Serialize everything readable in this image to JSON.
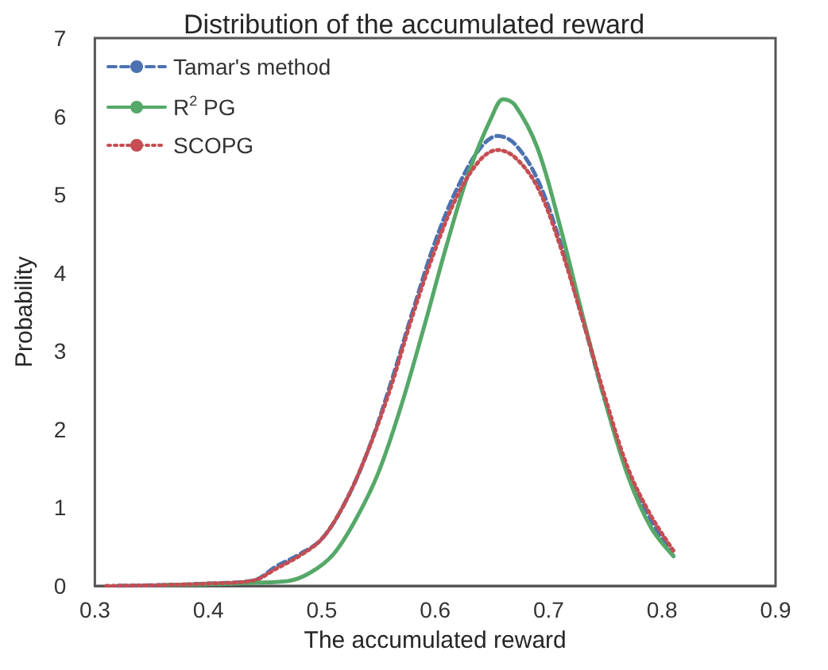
{
  "chart_data": {
    "type": "line",
    "title": "Distribution of the accumulated reward",
    "xlabel": "The accumulated reward",
    "ylabel": "Probability",
    "xlim": [
      0.3,
      0.9
    ],
    "xticks": [
      0.3,
      0.4,
      0.5,
      0.6,
      0.7,
      0.8,
      0.9
    ],
    "ylim": [
      0,
      7
    ],
    "yticks": [
      0,
      1,
      2,
      3,
      4,
      5,
      6,
      7
    ],
    "grid": false,
    "legend": "top left",
    "marker": "none",
    "series": [
      {
        "name": "Tamar's method",
        "color": "#4c72b0",
        "line_style": "dashed",
        "x": [
          0.32,
          0.36,
          0.4,
          0.44,
          0.46,
          0.48,
          0.5,
          0.52,
          0.54,
          0.56,
          0.58,
          0.6,
          0.62,
          0.64,
          0.655,
          0.67,
          0.69,
          0.71,
          0.73,
          0.75,
          0.77,
          0.79,
          0.81
        ],
        "values": [
          0,
          0.01,
          0.03,
          0.07,
          0.25,
          0.4,
          0.6,
          1.05,
          1.7,
          2.55,
          3.5,
          4.4,
          5.1,
          5.6,
          5.75,
          5.65,
          5.2,
          4.4,
          3.4,
          2.35,
          1.45,
          0.85,
          0.38
        ]
      },
      {
        "name": "R$^{2}$ PG",
        "color": "#55a868",
        "line_style": "solid",
        "x": [
          0.36,
          0.4,
          0.44,
          0.47,
          0.49,
          0.51,
          0.53,
          0.55,
          0.57,
          0.59,
          0.61,
          0.63,
          0.65,
          0.66,
          0.67,
          0.69,
          0.71,
          0.73,
          0.75,
          0.77,
          0.79,
          0.81
        ],
        "values": [
          0.01,
          0.02,
          0.04,
          0.06,
          0.17,
          0.4,
          0.85,
          1.45,
          2.3,
          3.3,
          4.35,
          5.3,
          6.0,
          6.22,
          6.15,
          5.6,
          4.6,
          3.45,
          2.35,
          1.4,
          0.75,
          0.38
        ]
      },
      {
        "name": "SCOPG",
        "color": "#c44e52",
        "line_style": "dotted",
        "x": [
          0.31,
          0.36,
          0.4,
          0.44,
          0.46,
          0.48,
          0.5,
          0.52,
          0.54,
          0.56,
          0.58,
          0.6,
          0.62,
          0.64,
          0.655,
          0.67,
          0.69,
          0.71,
          0.73,
          0.75,
          0.77,
          0.79,
          0.81
        ],
        "values": [
          0,
          0.01,
          0.03,
          0.07,
          0.22,
          0.38,
          0.6,
          1.05,
          1.7,
          2.5,
          3.45,
          4.3,
          5.0,
          5.45,
          5.57,
          5.48,
          5.1,
          4.35,
          3.4,
          2.4,
          1.5,
          0.9,
          0.45
        ]
      }
    ]
  }
}
